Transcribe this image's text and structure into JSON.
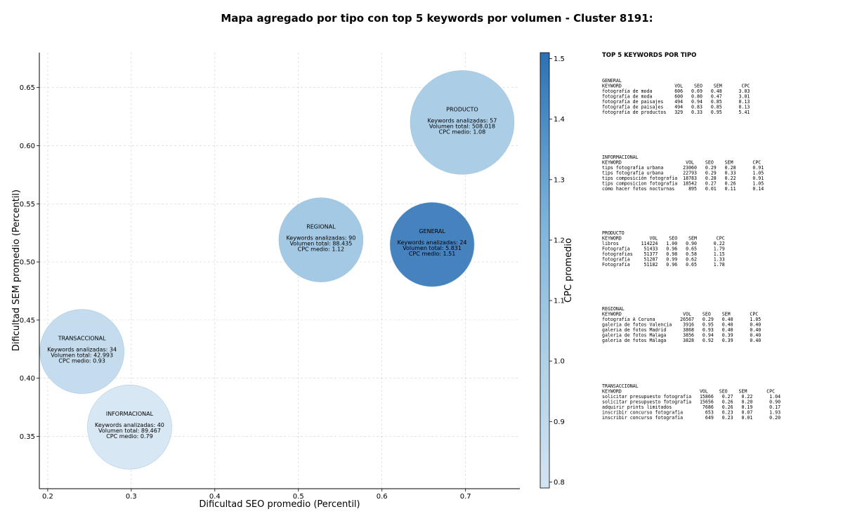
{
  "chart_data": {
    "type": "scatter",
    "title": "Mapa agregado por tipo con top 5 keywords por volumen - Cluster 8191:",
    "xlabel": "Dificultad SEO promedio (Percentil)",
    "ylabel": "Dificultad SEM promedio (Percentil)",
    "xlim": [
      0.19,
      0.765
    ],
    "ylim": [
      0.305,
      0.68
    ],
    "xticks": [
      "0.2",
      "0.3",
      "0.4",
      "0.5",
      "0.6",
      "0.7"
    ],
    "yticks": [
      "0.35",
      "0.40",
      "0.45",
      "0.50",
      "0.55",
      "0.60",
      "0.65"
    ],
    "grid": true,
    "colorbar": {
      "label": "CPC promedio",
      "min": 0.79,
      "max": 1.51,
      "ticks": [
        "0.8",
        "0.9",
        "1.0",
        "1.1",
        "1.2",
        "1.3",
        "1.4",
        "1.5"
      ],
      "color_low": "#d3e4f3",
      "color_high": "#2c71b4"
    },
    "points": [
      {
        "name": "PRODUCTO",
        "x": 0.696,
        "y": 0.62,
        "keywords_label": "Keywords analizadas: 57",
        "volume_label": "Volumen total: 508.018",
        "cpc_label": "CPC medio: 1.08",
        "cpc": 1.08,
        "volume": 508018
      },
      {
        "name": "REGIONAL",
        "x": 0.527,
        "y": 0.519,
        "keywords_label": "Keywords analizadas: 90",
        "volume_label": "Volumen total: 88.435",
        "cpc_label": "CPC medio: 1.12",
        "cpc": 1.12,
        "volume": 88435
      },
      {
        "name": "GENERAL",
        "x": 0.66,
        "y": 0.515,
        "keywords_label": "Keywords analizadas: 24",
        "volume_label": "Volumen total: 5.831",
        "cpc_label": "CPC medio: 1.51",
        "cpc": 1.51,
        "volume": 5831
      },
      {
        "name": "TRANSACCIONAL",
        "x": 0.241,
        "y": 0.423,
        "keywords_label": "Keywords analizadas: 34",
        "volume_label": "Volumen total: 42.993",
        "cpc_label": "CPC medio: 0.93",
        "cpc": 0.93,
        "volume": 42993
      },
      {
        "name": "INFORMACIONAL",
        "x": 0.298,
        "y": 0.358,
        "keywords_label": "Keywords analizadas: 40",
        "volume_label": "Volumen total: 89.467",
        "cpc_label": "CPC medio: 0.79",
        "cpc": 0.79,
        "volume": 89467
      }
    ]
  },
  "side_panel": {
    "heading": "TOP 5 KEYWORDS POR TIPO",
    "blocks": [
      {
        "name": "GENERAL",
        "lines": [
          "GENERAL",
          "KEYWORD                   VOL    SEO    SEM       CPC",
          "fotografía de moda        606   0.69   0.48      3.03",
          "fotografía de moda        600   0.80   0.47      3.01",
          "fotografía de paisajes    494   0.94   0.85      0.13",
          "fotografía de paisajes    494   0.83   0.85      0.13",
          "fotografía de productos   329   0.33   0.95      5.41"
        ]
      },
      {
        "name": "INFORMACIONAL",
        "lines": [
          "INFORMACIONAL",
          "KEYWORD                       VOL    SEO    SEM       CPC",
          "tips fotografia urbana       23060   0.29   0.28      0.91",
          "tips fotografía urbana       22793   0.29   0.33      1.05",
          "tips composición fotografía  18783   0.28   0.22      0.91",
          "tips composicion fotografia  18542   0.27   0.26      1.05",
          "cómo hacer fotos nocturnas     895   0.01   0.11      0.14"
        ]
      },
      {
        "name": "PRODUCTO",
        "lines": [
          "PRODUCTO",
          "KEYWORD          VOL    SEO    SEM       CPC",
          "libros        114224   1.00   0.90      0.22",
          "Fotografía     51433   0.96   0.65      1.79",
          "fotografías    51377   0.98   0.58      1.15",
          "fotografía     51287   0.99   0.62      1.33",
          "Fotografía     51182   0.96   0.65      1.78"
        ]
      },
      {
        "name": "REGIONAL",
        "lines": [
          "REGIONAL",
          "KEYWORD                      VOL    SEO    SEM       CPC",
          "fotografía A Coruna         26567   0.29   0.40      1.05",
          "galeria de fotos Valencia    3916   0.95   0.40      0.40",
          "galeria de fotos Madrid      3868   0.93   0.40      0.40",
          "galeria de fotos Malaga      3856   0.94   0.39      0.40",
          "galeria de fotos Málaga      3828   0.92   0.39      0.40"
        ]
      },
      {
        "name": "TRANSACCIONAL",
        "lines": [
          "TRANSACCIONAL",
          "KEYWORD                            VOL    SEO    SEM       CPC",
          "solicitar presupuesto fotografia   15866   0.27   0.22      1.04",
          "solicitar presupuesto fotografía   15656   0.26   0.20      0.90",
          "adquirir prints limitados           7686   0.26   0.19      0.17",
          "inscribir concurso fotografia        653   0.23   0.07      1.93",
          "inscribir concurso fotografía        649   0.23   0.01      0.20"
        ]
      }
    ]
  }
}
